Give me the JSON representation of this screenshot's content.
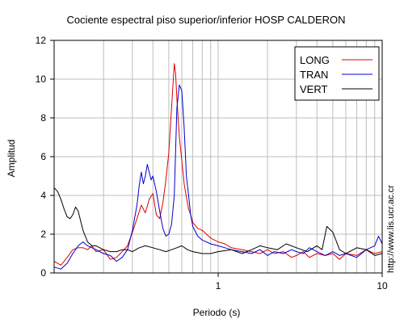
{
  "chart_data": {
    "type": "line",
    "title": "Cociente espectral piso superior/inferior  HOSP CALDERON",
    "xlabel": "Periodo (s)",
    "ylabel": "Amplitud",
    "xscale": "log",
    "xlim": [
      0.1,
      10
    ],
    "ylim": [
      0,
      12
    ],
    "x_ticks": [
      1,
      10
    ],
    "x_tick_labels": [
      "1",
      "10"
    ],
    "y_ticks": [
      0,
      2,
      4,
      6,
      8,
      10,
      12
    ],
    "y_tick_labels": [
      "0",
      "2",
      "4",
      "6",
      "8",
      "10",
      "12"
    ],
    "grid": true,
    "legend_position": "top-right",
    "watermark": "http://www.lis.ucr.ac.cr",
    "series": [
      {
        "name": "LONG",
        "color": "#e00000",
        "x": [
          0.1,
          0.11,
          0.12,
          0.13,
          0.14,
          0.15,
          0.16,
          0.17,
          0.18,
          0.2,
          0.22,
          0.24,
          0.26,
          0.28,
          0.3,
          0.32,
          0.34,
          0.36,
          0.38,
          0.4,
          0.42,
          0.44,
          0.46,
          0.48,
          0.5,
          0.52,
          0.54,
          0.55,
          0.56,
          0.58,
          0.6,
          0.62,
          0.64,
          0.66,
          0.68,
          0.7,
          0.75,
          0.8,
          0.9,
          1.0,
          1.1,
          1.2,
          1.4,
          1.6,
          1.8,
          2.0,
          2.2,
          2.5,
          2.8,
          3.0,
          3.3,
          3.6,
          4.0,
          4.5,
          5.0,
          5.5,
          6.0,
          7.0,
          8.0,
          9.0,
          10.0
        ],
        "y": [
          0.6,
          0.4,
          0.8,
          1.2,
          1.3,
          1.3,
          1.2,
          1.4,
          1.1,
          1.2,
          0.7,
          0.8,
          1.1,
          1.4,
          2.1,
          2.8,
          3.5,
          3.1,
          3.8,
          4.1,
          3.0,
          2.8,
          3.6,
          4.8,
          6.2,
          8.5,
          10.8,
          10.3,
          9.0,
          7.0,
          5.8,
          4.6,
          3.9,
          3.3,
          3.0,
          2.6,
          2.3,
          2.2,
          1.8,
          1.6,
          1.5,
          1.3,
          1.2,
          1.1,
          1.0,
          1.2,
          1.0,
          1.1,
          0.8,
          0.9,
          1.1,
          0.8,
          1.0,
          0.9,
          1.0,
          0.7,
          1.0,
          0.9,
          1.2,
          1.0,
          1.1
        ]
      },
      {
        "name": "TRAN",
        "color": "#0000cc",
        "x": [
          0.1,
          0.11,
          0.12,
          0.13,
          0.14,
          0.15,
          0.16,
          0.17,
          0.18,
          0.2,
          0.22,
          0.24,
          0.26,
          0.28,
          0.3,
          0.32,
          0.33,
          0.34,
          0.35,
          0.36,
          0.37,
          0.38,
          0.39,
          0.4,
          0.42,
          0.44,
          0.46,
          0.48,
          0.5,
          0.52,
          0.54,
          0.56,
          0.58,
          0.6,
          0.62,
          0.64,
          0.66,
          0.68,
          0.7,
          0.75,
          0.8,
          0.9,
          1.0,
          1.1,
          1.2,
          1.4,
          1.6,
          1.8,
          2.0,
          2.2,
          2.5,
          2.8,
          3.0,
          3.3,
          3.6,
          4.0,
          4.5,
          5.0,
          5.5,
          6.0,
          7.0,
          8.0,
          9.0,
          9.5,
          10.0
        ],
        "y": [
          0.3,
          0.2,
          0.5,
          1.0,
          1.4,
          1.6,
          1.4,
          1.3,
          1.2,
          1.0,
          0.9,
          0.6,
          0.8,
          1.2,
          2.2,
          3.5,
          4.5,
          5.2,
          4.6,
          5.0,
          5.6,
          5.2,
          4.8,
          5.0,
          4.2,
          3.2,
          2.3,
          1.9,
          2.0,
          2.5,
          4.0,
          8.5,
          9.7,
          9.4,
          7.5,
          5.0,
          4.0,
          3.0,
          2.4,
          1.9,
          1.7,
          1.5,
          1.4,
          1.3,
          1.2,
          1.1,
          1.0,
          1.2,
          0.9,
          1.1,
          1.0,
          1.2,
          1.1,
          1.0,
          1.3,
          1.1,
          0.9,
          1.1,
          0.9,
          1.0,
          0.8,
          1.2,
          1.4,
          1.9,
          1.5
        ]
      },
      {
        "name": "VERT",
        "color": "#000000",
        "x": [
          0.1,
          0.105,
          0.11,
          0.115,
          0.12,
          0.125,
          0.13,
          0.135,
          0.14,
          0.15,
          0.16,
          0.17,
          0.18,
          0.2,
          0.22,
          0.24,
          0.26,
          0.28,
          0.3,
          0.33,
          0.36,
          0.4,
          0.44,
          0.48,
          0.52,
          0.56,
          0.6,
          0.65,
          0.7,
          0.8,
          0.9,
          1.0,
          1.2,
          1.4,
          1.6,
          1.8,
          2.0,
          2.3,
          2.6,
          3.0,
          3.5,
          4.0,
          4.3,
          4.6,
          5.0,
          5.5,
          6.0,
          7.0,
          8.0,
          9.0,
          10.0
        ],
        "y": [
          4.4,
          4.2,
          3.8,
          3.3,
          2.9,
          2.8,
          3.0,
          3.4,
          3.2,
          2.2,
          1.6,
          1.4,
          1.4,
          1.2,
          1.1,
          1.1,
          1.2,
          1.2,
          1.1,
          1.3,
          1.4,
          1.3,
          1.2,
          1.1,
          1.2,
          1.3,
          1.4,
          1.2,
          1.1,
          1.0,
          1.0,
          1.1,
          1.2,
          1.0,
          1.2,
          1.4,
          1.3,
          1.2,
          1.5,
          1.3,
          1.1,
          1.4,
          1.2,
          2.4,
          2.1,
          1.2,
          1.0,
          1.3,
          1.2,
          0.9,
          1.0
        ]
      }
    ]
  }
}
